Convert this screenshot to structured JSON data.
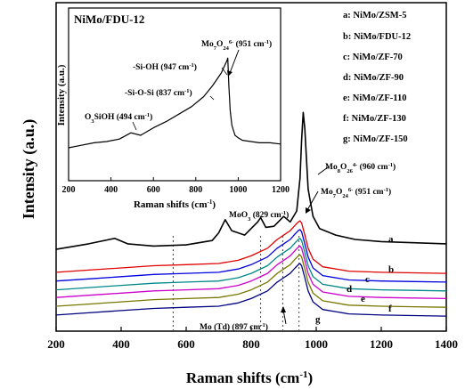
{
  "chart_data": [
    {
      "type": "line",
      "xlabel_main": "Raman shifts (cm",
      "xlabel_sup": "-1",
      "xlabel_tail": ")",
      "ylabel": "Intensity (a.u.)",
      "xlim": [
        200,
        1400
      ],
      "xticks": [
        "200",
        "400",
        "600",
        "800",
        "1000",
        "1200",
        "1400"
      ],
      "ref_lines_x": [
        560,
        829,
        897,
        947
      ],
      "series": [
        {
          "name": "a",
          "color": "#000000",
          "offset": 6.0,
          "x": [
            200,
            300,
            380,
            420,
            500,
            600,
            680,
            700,
            720,
            740,
            780,
            820,
            829,
            845,
            870,
            900,
            920,
            940,
            950,
            955,
            960,
            965,
            975,
            990,
            1010,
            1060,
            1120,
            1200,
            1300,
            1400
          ],
          "y": [
            0.5,
            1.0,
            1.5,
            1.0,
            0.8,
            0.9,
            1.3,
            2.0,
            3.2,
            2.2,
            1.8,
            3.0,
            3.4,
            2.5,
            2.6,
            3.5,
            3.0,
            4.0,
            7.0,
            10.5,
            13.0,
            11.5,
            6.0,
            3.5,
            2.4,
            1.8,
            1.4,
            1.2,
            1.1,
            1.0
          ]
        },
        {
          "name": "b",
          "color": "#e00000",
          "offset": 4.2,
          "x": [
            200,
            300,
            400,
            500,
            600,
            700,
            760,
            800,
            850,
            880,
            900,
            920,
            935,
            945,
            950,
            955,
            965,
            975,
            990,
            1020,
            1100,
            1200,
            1300,
            1400
          ],
          "y": [
            0.2,
            0.4,
            0.6,
            0.8,
            0.9,
            1.0,
            1.3,
            1.7,
            2.4,
            3.2,
            3.6,
            4.0,
            4.5,
            4.8,
            4.9,
            4.7,
            3.6,
            2.4,
            1.4,
            0.7,
            0.3,
            0.2,
            0.15,
            0.1
          ]
        },
        {
          "name": "c",
          "color": "#0000e0",
          "offset": 3.4,
          "x": [
            200,
            300,
            400,
            500,
            600,
            700,
            760,
            800,
            850,
            880,
            900,
            920,
            935,
            945,
            950,
            955,
            965,
            975,
            990,
            1020,
            1100,
            1200,
            1300,
            1400
          ],
          "y": [
            0.2,
            0.4,
            0.6,
            0.8,
            0.9,
            1.0,
            1.3,
            1.7,
            2.4,
            3.2,
            3.6,
            4.0,
            4.5,
            4.8,
            4.9,
            4.7,
            3.6,
            2.4,
            1.4,
            0.7,
            0.3,
            0.2,
            0.15,
            0.1
          ]
        },
        {
          "name": "d",
          "color": "#008888",
          "offset": 2.6,
          "x": [
            200,
            300,
            400,
            500,
            600,
            700,
            760,
            800,
            850,
            880,
            900,
            920,
            935,
            945,
            950,
            955,
            965,
            975,
            990,
            1020,
            1100,
            1200,
            1300,
            1400
          ],
          "y": [
            0.2,
            0.4,
            0.6,
            0.8,
            0.9,
            1.0,
            1.3,
            1.7,
            2.4,
            3.2,
            3.6,
            4.0,
            4.5,
            4.8,
            4.9,
            4.7,
            3.6,
            2.4,
            1.4,
            0.7,
            0.3,
            0.2,
            0.15,
            0.1
          ]
        },
        {
          "name": "e",
          "color": "#cc00cc",
          "offset": 1.9,
          "x": [
            200,
            300,
            400,
            500,
            600,
            700,
            760,
            800,
            850,
            880,
            900,
            920,
            935,
            945,
            950,
            955,
            965,
            975,
            990,
            1020,
            1100,
            1200,
            1300,
            1400
          ],
          "y": [
            0.2,
            0.4,
            0.6,
            0.8,
            0.9,
            1.0,
            1.3,
            1.7,
            2.4,
            3.2,
            3.6,
            4.0,
            4.5,
            4.8,
            4.9,
            4.7,
            3.6,
            2.4,
            1.4,
            0.7,
            0.3,
            0.2,
            0.15,
            0.1
          ]
        },
        {
          "name": "f",
          "color": "#777700",
          "offset": 1.1,
          "x": [
            200,
            300,
            400,
            500,
            600,
            700,
            760,
            800,
            850,
            880,
            900,
            920,
            935,
            945,
            950,
            955,
            965,
            975,
            990,
            1020,
            1100,
            1200,
            1300,
            1400
          ],
          "y": [
            0.2,
            0.4,
            0.6,
            0.8,
            0.9,
            1.0,
            1.3,
            1.7,
            2.4,
            3.2,
            3.6,
            4.0,
            4.5,
            4.8,
            4.9,
            4.7,
            3.6,
            2.4,
            1.4,
            0.7,
            0.3,
            0.2,
            0.15,
            0.1
          ]
        },
        {
          "name": "g",
          "color": "#000080",
          "offset": 0.3,
          "x": [
            200,
            300,
            400,
            500,
            600,
            700,
            760,
            800,
            850,
            880,
            900,
            920,
            935,
            945,
            950,
            955,
            965,
            975,
            990,
            1020,
            1100,
            1200,
            1300,
            1400
          ],
          "y": [
            0.2,
            0.4,
            0.6,
            0.8,
            0.9,
            1.0,
            1.3,
            1.7,
            2.4,
            3.2,
            3.6,
            4.0,
            4.5,
            4.8,
            4.9,
            4.7,
            3.6,
            2.4,
            1.4,
            0.7,
            0.3,
            0.2,
            0.15,
            0.1
          ]
        }
      ],
      "legend": [
        "a: NiMo/ZSM-5",
        "b: NiMo/FDU-12",
        "c: NiMo/ZF-70",
        "d: NiMo/ZF-90",
        "e: NiMo/ZF-110",
        "f: NiMo/ZF-130",
        "g: NiMo/ZF-150"
      ],
      "annotations": {
        "mo8": {
          "base": "Mo",
          "s1": "8",
          "mid": "O",
          "s2": "26",
          "sup": "4-",
          "tail": " (960 cm",
          "sup2": "-1",
          "end": ")"
        },
        "mo7": {
          "base": "Mo",
          "s1": "7",
          "mid": "O",
          "s2": "24",
          "sup": "6-",
          "tail": " (951 cm",
          "sup2": "-1",
          "end": ")"
        },
        "moo3": {
          "base": "MoO",
          "s1": "3",
          "tail": " (829 cm",
          "sup2": "-1",
          "end": ")"
        },
        "motd": {
          "text": "Mo (Td) (897 cm",
          "sup2": "-1",
          "end": ")"
        }
      }
    },
    {
      "type": "line",
      "title": "NiMo/FDU-12",
      "xlabel_main": "Raman shifts (cm",
      "xlabel_sup": "-1",
      "xlabel_tail": ")",
      "ylabel": "Intensity (a.u.)",
      "xlim": [
        200,
        1200
      ],
      "xticks": [
        "200",
        "400",
        "600",
        "800",
        "1000",
        "1200"
      ],
      "series": [
        {
          "color": "#000000",
          "x": [
            200,
            260,
            320,
            380,
            440,
            494,
            540,
            600,
            660,
            720,
            780,
            837,
            880,
            920,
            947,
            951,
            956,
            962,
            970,
            985,
            1000,
            1020,
            1060,
            1100,
            1150,
            1200
          ],
          "y": [
            0.1,
            0.12,
            0.14,
            0.15,
            0.17,
            0.22,
            0.2,
            0.26,
            0.31,
            0.37,
            0.43,
            0.51,
            0.6,
            0.7,
            0.8,
            0.82,
            0.6,
            0.4,
            0.28,
            0.2,
            0.18,
            0.16,
            0.15,
            0.14,
            0.14,
            0.13
          ]
        }
      ],
      "annotations": {
        "mo7": {
          "base": "Mo",
          "s1": "7",
          "mid": "O",
          "s2": "24",
          "sup": "6-",
          "tail": " (951 cm",
          "sup2": "-1",
          "end": ")"
        },
        "sioh": {
          "text": "-Si-OH (947 cm",
          "sup2": "-1",
          "end": ")"
        },
        "siosi": {
          "text": "-Si-O-Si (837 cm",
          "sup2": "-1",
          "end": ")"
        },
        "o3sioh": {
          "text": "O",
          "s1": "3",
          "text2": "SiOH (494 cm",
          "sup2": "-1",
          "end": ")"
        }
      }
    }
  ]
}
